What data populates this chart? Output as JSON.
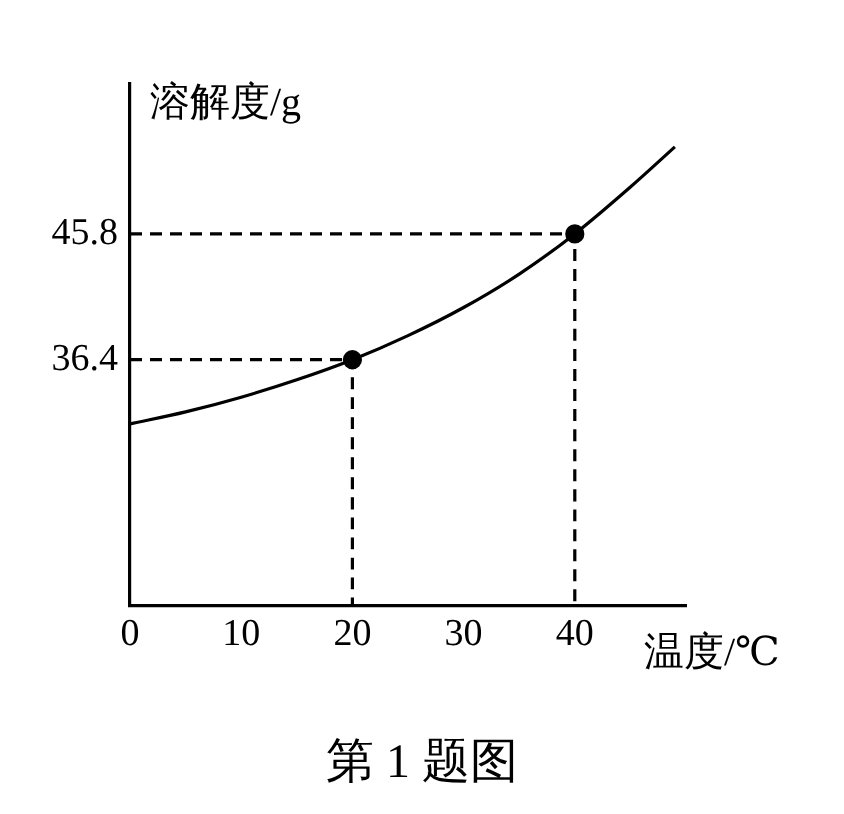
{
  "chart_data": {
    "type": "line",
    "xlabel": "温度/℃",
    "ylabel": "溶解度/g",
    "annotations": [
      "第 1 题图"
    ],
    "xlim": [
      0,
      50
    ],
    "xticks": [
      0,
      10,
      20,
      30,
      40
    ],
    "ylim": [
      18,
      57
    ],
    "yticks": [
      36.4,
      45.8
    ],
    "grid": false,
    "legend": false,
    "series": [
      {
        "color": "#000000",
        "marker": "none",
        "x": [
          0,
          5,
          10,
          15,
          20,
          25,
          30,
          35,
          40,
          45,
          49
        ],
        "values": [
          31.6,
          32.5,
          33.6,
          34.9,
          36.4,
          38.2,
          40.3,
          42.8,
          45.8,
          49.3,
          52.3
        ]
      },
      {
        "type": "scatter",
        "color": "#000000",
        "marker": "circle",
        "x": [
          20,
          40
        ],
        "values": [
          36.4,
          45.8
        ]
      },
      {
        "color": "#000000",
        "marker": "none",
        "line_style": "dashed",
        "x": [
          0,
          20,
          20
        ],
        "values": [
          36.4,
          36.4,
          18
        ]
      },
      {
        "color": "#000000",
        "marker": "none",
        "line_style": "dashed",
        "x": [
          0,
          40,
          40
        ],
        "values": [
          45.8,
          45.8,
          18
        ]
      }
    ]
  }
}
